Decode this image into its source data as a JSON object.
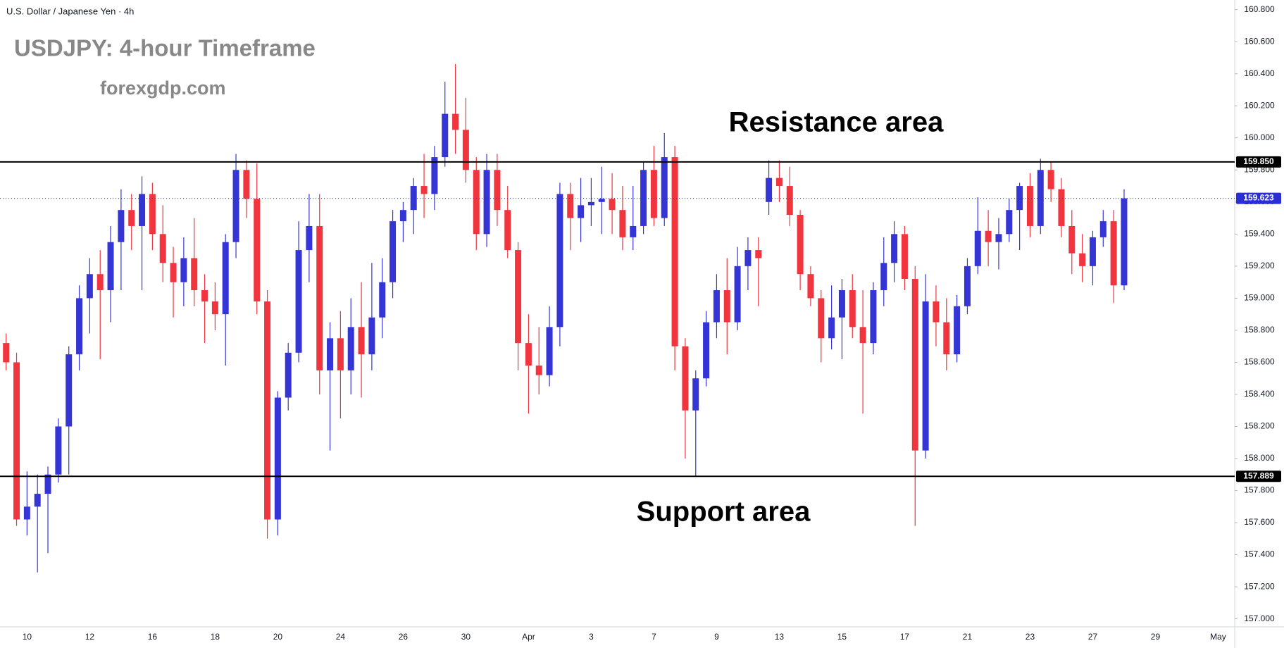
{
  "chart_data": {
    "type": "candlestick",
    "title": "USDJPY: 4-hour Timeframe",
    "subtitle": "U.S. Dollar / Japanese Yen · 4h",
    "annotations": [
      "forexgdp.com",
      "Resistance area",
      "Support area"
    ],
    "up_color": "#3535d6",
    "down_color": "#f0353f",
    "ylim": [
      156.95,
      160.86
    ],
    "yticks": [
      {
        "value": 157.0,
        "label": "157.000"
      },
      {
        "value": 157.2,
        "label": "157.200"
      },
      {
        "value": 157.4,
        "label": "157.400"
      },
      {
        "value": 157.6,
        "label": "157.600"
      },
      {
        "value": 157.8,
        "label": "157.800"
      },
      {
        "value": 158.0,
        "label": "158.000"
      },
      {
        "value": 158.2,
        "label": "158.200"
      },
      {
        "value": 158.4,
        "label": "158.400"
      },
      {
        "value": 158.6,
        "label": "158.600"
      },
      {
        "value": 158.8,
        "label": "158.800"
      },
      {
        "value": 159.0,
        "label": "159.000"
      },
      {
        "value": 159.2,
        "label": "159.200"
      },
      {
        "value": 159.4,
        "label": "159.400"
      },
      {
        "value": 159.6,
        "label": "159.600"
      },
      {
        "value": 159.8,
        "label": "159.800"
      },
      {
        "value": 160.0,
        "label": "160.000"
      },
      {
        "value": 160.2,
        "label": "160.200"
      },
      {
        "value": 160.4,
        "label": "160.400"
      },
      {
        "value": 160.6,
        "label": "160.600"
      },
      {
        "value": 160.8,
        "label": "160.800"
      }
    ],
    "grid": false,
    "levels": [
      {
        "value": 159.85,
        "label": "159.850"
      },
      {
        "value": 157.889,
        "label": "157.889"
      }
    ],
    "last_price": {
      "value": 159.623,
      "label": "159.623",
      "color": "#2a2ed6"
    },
    "categories": [
      null,
      null,
      "10",
      null,
      null,
      null,
      null,
      null,
      "12",
      null,
      null,
      null,
      null,
      null,
      "16",
      null,
      null,
      null,
      null,
      null,
      "18",
      null,
      null,
      null,
      null,
      null,
      "20",
      null,
      null,
      null,
      null,
      null,
      "24",
      null,
      null,
      null,
      null,
      null,
      "26",
      null,
      null,
      null,
      null,
      null,
      "30",
      null,
      null,
      null,
      null,
      null,
      "Apr",
      null,
      null,
      null,
      null,
      null,
      "3",
      null,
      null,
      null,
      null,
      null,
      "7",
      null,
      null,
      null,
      null,
      null,
      "9",
      null,
      null,
      null,
      null,
      null,
      "13",
      null,
      null,
      null,
      null,
      null,
      "15",
      null,
      null,
      null,
      null,
      null,
      "17",
      null,
      null,
      null,
      null,
      null,
      "21",
      null,
      null,
      null,
      null,
      null,
      "23",
      null,
      null,
      null,
      null,
      null,
      "27",
      null,
      null,
      null,
      null,
      null,
      "29",
      null,
      null,
      null,
      null,
      null,
      "May",
      null
    ],
    "open": [
      158.72,
      158.6,
      157.62,
      157.7,
      157.78,
      157.9,
      158.2,
      158.65,
      159.0,
      159.15,
      159.05,
      159.35,
      159.55,
      159.45,
      159.65,
      159.4,
      159.22,
      159.1,
      159.25,
      159.05,
      158.98,
      158.9,
      159.35,
      159.8,
      159.62,
      158.98,
      157.62,
      158.38,
      158.66,
      159.3,
      159.45,
      158.55,
      158.75,
      158.55,
      158.82,
      158.65,
      158.88,
      159.1,
      159.48,
      159.55,
      159.7,
      159.65,
      159.88,
      160.15,
      160.05,
      159.8,
      159.4,
      159.8,
      159.55,
      159.3,
      158.72,
      158.58,
      158.52,
      158.82,
      159.65,
      159.5,
      159.58,
      159.6,
      159.62,
      159.55,
      159.38,
      159.45,
      159.8,
      159.5,
      159.88,
      158.7,
      158.3,
      158.5,
      158.85,
      159.05,
      158.85,
      159.2,
      159.3,
      159.6,
      159.75,
      159.7,
      159.52,
      159.15,
      159.0,
      158.75,
      158.88,
      159.05,
      158.82,
      158.72,
      159.05,
      159.22,
      159.4,
      159.12,
      158.05,
      158.98,
      158.85,
      158.65,
      158.95,
      159.2,
      159.42,
      159.35,
      159.4,
      159.55,
      159.7,
      159.45,
      159.8,
      159.68,
      159.45,
      159.28,
      159.2,
      159.38,
      159.48,
      159.08,
      null,
      null,
      null,
      null,
      null,
      null,
      null,
      null,
      null,
      null
    ],
    "high": [
      158.78,
      158.66,
      157.92,
      157.9,
      157.95,
      158.25,
      158.7,
      159.08,
      159.25,
      159.3,
      159.45,
      159.68,
      159.65,
      159.76,
      159.72,
      159.58,
      159.32,
      159.38,
      159.5,
      159.15,
      159.1,
      159.4,
      159.9,
      159.86,
      159.84,
      159.05,
      158.42,
      158.72,
      159.48,
      159.65,
      159.65,
      158.85,
      158.92,
      159.0,
      159.1,
      159.22,
      159.25,
      159.55,
      159.6,
      159.75,
      159.9,
      159.95,
      160.35,
      160.46,
      160.25,
      159.88,
      159.9,
      159.9,
      159.7,
      159.35,
      158.9,
      158.82,
      158.95,
      159.72,
      159.72,
      159.75,
      159.75,
      159.82,
      159.78,
      159.7,
      159.7,
      159.85,
      159.95,
      160.03,
      159.95,
      158.75,
      158.55,
      158.92,
      159.15,
      159.25,
      159.32,
      159.38,
      159.38,
      159.86,
      159.86,
      159.82,
      159.55,
      159.2,
      159.05,
      159.08,
      159.12,
      159.15,
      159.05,
      159.1,
      159.38,
      159.48,
      159.45,
      159.2,
      159.15,
      159.08,
      159.0,
      159.02,
      159.25,
      159.63,
      159.55,
      159.5,
      159.62,
      159.72,
      159.78,
      159.87,
      159.85,
      159.75,
      159.55,
      159.4,
      159.42,
      159.55,
      159.55,
      159.68,
      null,
      null,
      null,
      null,
      null,
      null,
      null,
      null,
      null,
      null
    ],
    "low": [
      158.55,
      157.58,
      157.52,
      157.29,
      157.41,
      157.85,
      157.9,
      158.55,
      158.78,
      158.62,
      158.85,
      159.05,
      159.3,
      159.05,
      159.3,
      159.1,
      158.88,
      158.95,
      158.95,
      158.72,
      158.8,
      158.58,
      159.25,
      159.5,
      158.9,
      157.5,
      157.52,
      158.3,
      158.6,
      159.1,
      158.4,
      158.05,
      158.25,
      158.4,
      158.38,
      158.55,
      158.75,
      159.0,
      159.35,
      159.4,
      159.5,
      159.55,
      159.82,
      159.9,
      159.72,
      159.3,
      159.32,
      159.45,
      159.25,
      158.55,
      158.28,
      158.4,
      158.45,
      158.7,
      159.3,
      159.35,
      159.45,
      159.4,
      159.4,
      159.3,
      159.3,
      159.4,
      159.45,
      159.45,
      158.55,
      158.0,
      157.89,
      158.45,
      158.75,
      158.65,
      158.8,
      159.05,
      158.95,
      159.52,
      159.6,
      159.45,
      159.05,
      158.95,
      158.6,
      158.68,
      158.62,
      158.75,
      158.28,
      158.65,
      158.95,
      159.1,
      159.05,
      157.58,
      158.0,
      158.7,
      158.55,
      158.6,
      158.9,
      159.15,
      159.2,
      159.18,
      159.35,
      159.3,
      159.38,
      159.4,
      159.6,
      159.38,
      159.15,
      159.1,
      159.08,
      159.32,
      158.97,
      159.05,
      null,
      null,
      null,
      null,
      null,
      null,
      null,
      null,
      null,
      null
    ],
    "close": [
      158.6,
      157.62,
      157.7,
      157.78,
      157.9,
      158.2,
      158.65,
      159.0,
      159.15,
      159.05,
      159.35,
      159.55,
      159.45,
      159.65,
      159.4,
      159.22,
      159.1,
      159.25,
      159.05,
      158.98,
      158.9,
      159.35,
      159.8,
      159.62,
      158.98,
      157.62,
      158.38,
      158.66,
      159.3,
      159.45,
      158.55,
      158.75,
      158.55,
      158.82,
      158.65,
      158.88,
      159.1,
      159.48,
      159.55,
      159.7,
      159.65,
      159.88,
      160.15,
      160.05,
      159.8,
      159.4,
      159.8,
      159.55,
      159.3,
      158.72,
      158.58,
      158.52,
      158.82,
      159.65,
      159.5,
      159.58,
      159.6,
      159.62,
      159.55,
      159.38,
      159.45,
      159.8,
      159.5,
      159.88,
      158.7,
      158.3,
      158.5,
      158.85,
      159.05,
      158.85,
      159.2,
      159.3,
      159.25,
      159.75,
      159.7,
      159.52,
      159.15,
      159.0,
      158.75,
      158.88,
      159.05,
      158.82,
      158.72,
      159.05,
      159.22,
      159.4,
      159.12,
      158.05,
      158.98,
      158.85,
      158.65,
      158.95,
      159.2,
      159.42,
      159.35,
      159.4,
      159.55,
      159.7,
      159.45,
      159.8,
      159.68,
      159.45,
      159.28,
      159.2,
      159.38,
      159.48,
      159.08,
      159.623,
      null,
      null,
      null,
      null,
      null,
      null,
      null,
      null,
      null,
      null
    ]
  }
}
